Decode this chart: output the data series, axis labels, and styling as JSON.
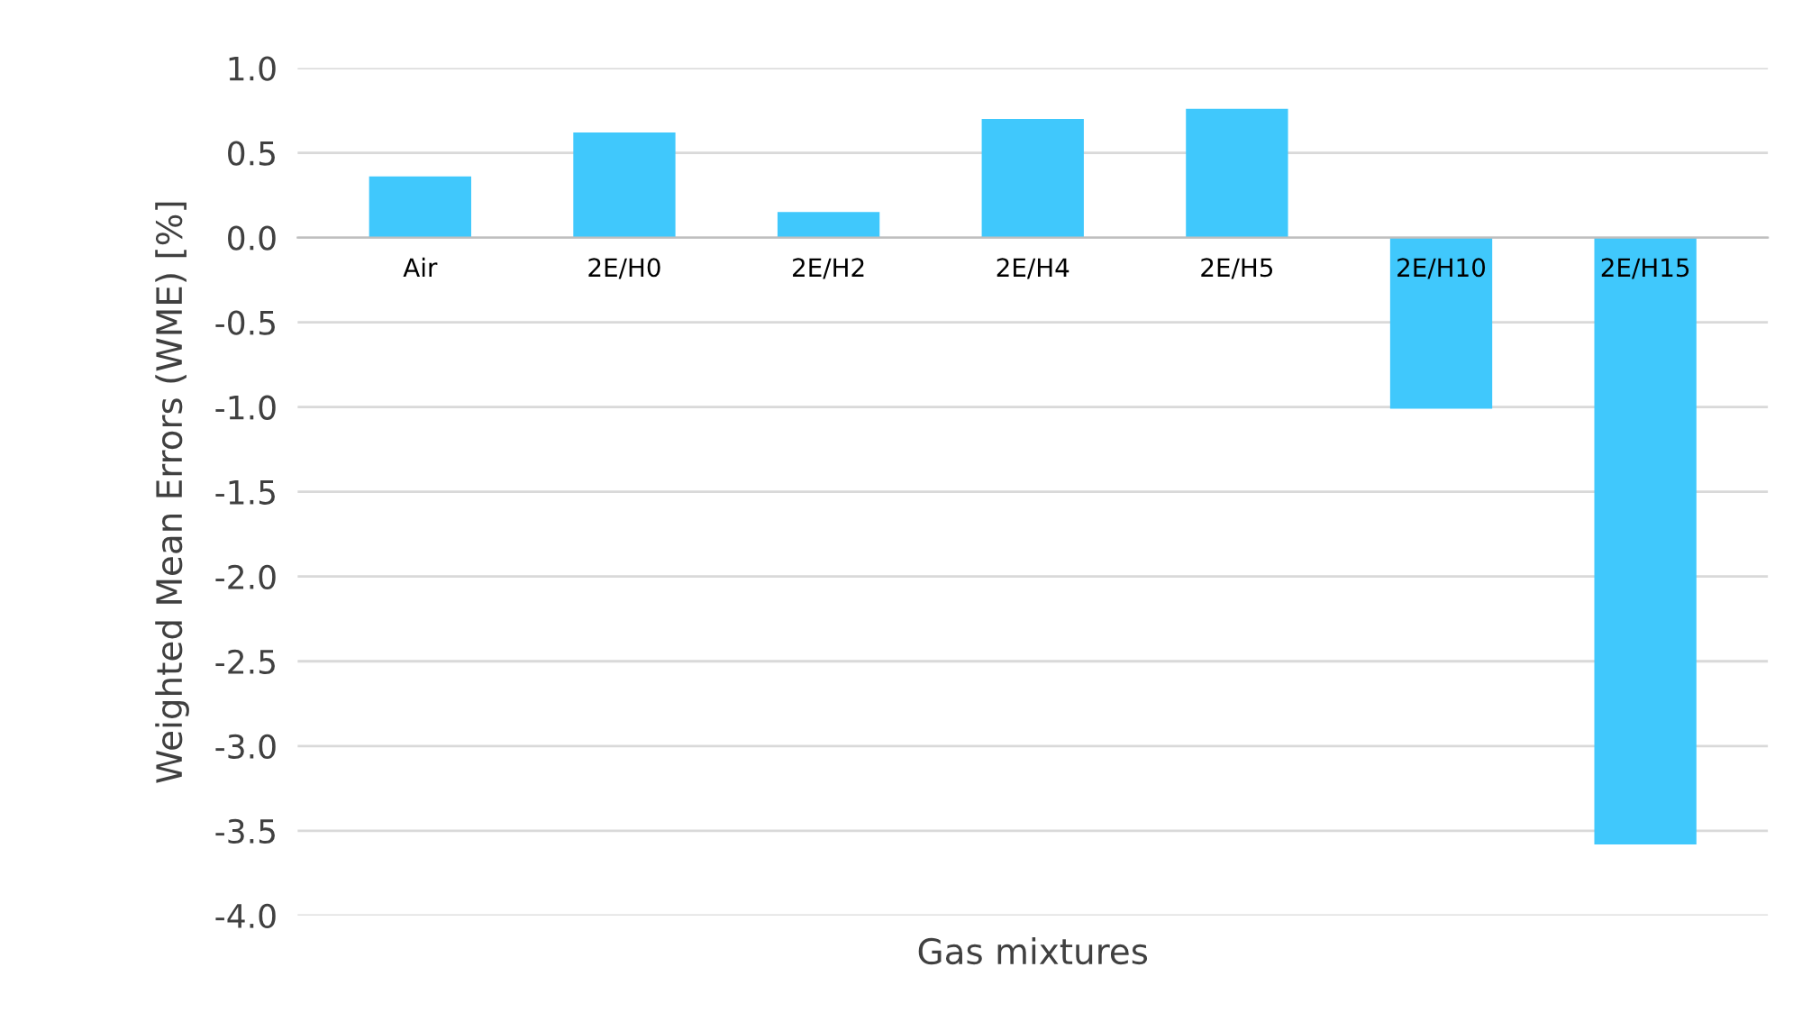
{
  "chart_data": {
    "type": "bar",
    "categories": [
      "Air",
      "2E/H0",
      "2E/H2",
      "2E/H4",
      "2E/H5",
      "2E/H10",
      "2E/H15"
    ],
    "values": [
      0.36,
      0.62,
      0.15,
      0.7,
      0.76,
      -1.01,
      -3.58
    ],
    "color": "#40c8fc",
    "xlabel": "Gas mixtures",
    "ylabel": "Weighted Mean Errors (WME) [%]",
    "ylim": [
      -4.0,
      1.0
    ],
    "yticks": [
      {
        "value": -4.0,
        "label": "-4.0"
      },
      {
        "value": -3.5,
        "label": "-3.5"
      },
      {
        "value": -3.0,
        "label": "-3.0"
      },
      {
        "value": -2.5,
        "label": "-2.5"
      },
      {
        "value": -2.0,
        "label": "-2.0"
      },
      {
        "value": -1.5,
        "label": "-1.5"
      },
      {
        "value": -1.0,
        "label": "-1.0"
      },
      {
        "value": -0.5,
        "label": "-0.5"
      },
      {
        "value": 0.0,
        "label": "0.0"
      },
      {
        "value": 0.5,
        "label": "0.5"
      },
      {
        "value": 1.0,
        "label": "1.0"
      }
    ],
    "grid": "y"
  }
}
